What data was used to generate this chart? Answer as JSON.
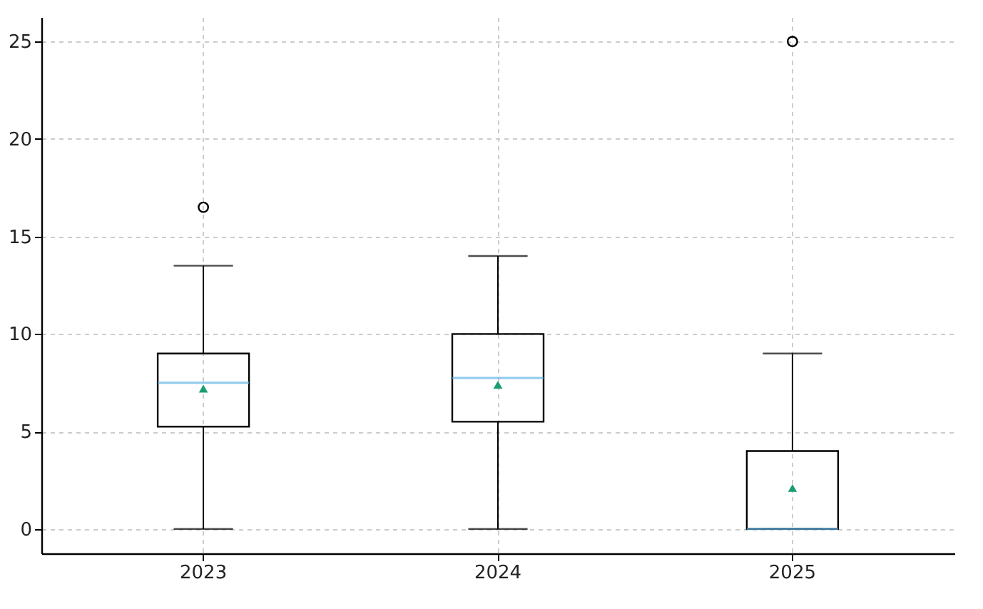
{
  "chart_data": {
    "type": "box",
    "categories": [
      "2023",
      "2024",
      "2025"
    ],
    "ylim": [
      -1.25,
      26.25
    ],
    "yticks": [
      0,
      5,
      10,
      15,
      20,
      25
    ],
    "grid": true,
    "marker": "triangle",
    "series": [
      {
        "color": "#5fb4e6",
        "boxes": [
          {
            "low": 0,
            "q1": 5.25,
            "median": 7.5,
            "q3": 9,
            "high": 13.5,
            "mean": 7.2,
            "outliers": [
              16.5
            ]
          },
          {
            "low": 0,
            "q1": 5.5,
            "median": 7.75,
            "q3": 10,
            "high": 14,
            "mean": 7.4
          },
          {
            "low": 0,
            "q1": 0,
            "median": 0,
            "q3": 4,
            "high": 9,
            "mean": 2.1,
            "outliers": [
              25
            ]
          }
        ]
      }
    ]
  }
}
